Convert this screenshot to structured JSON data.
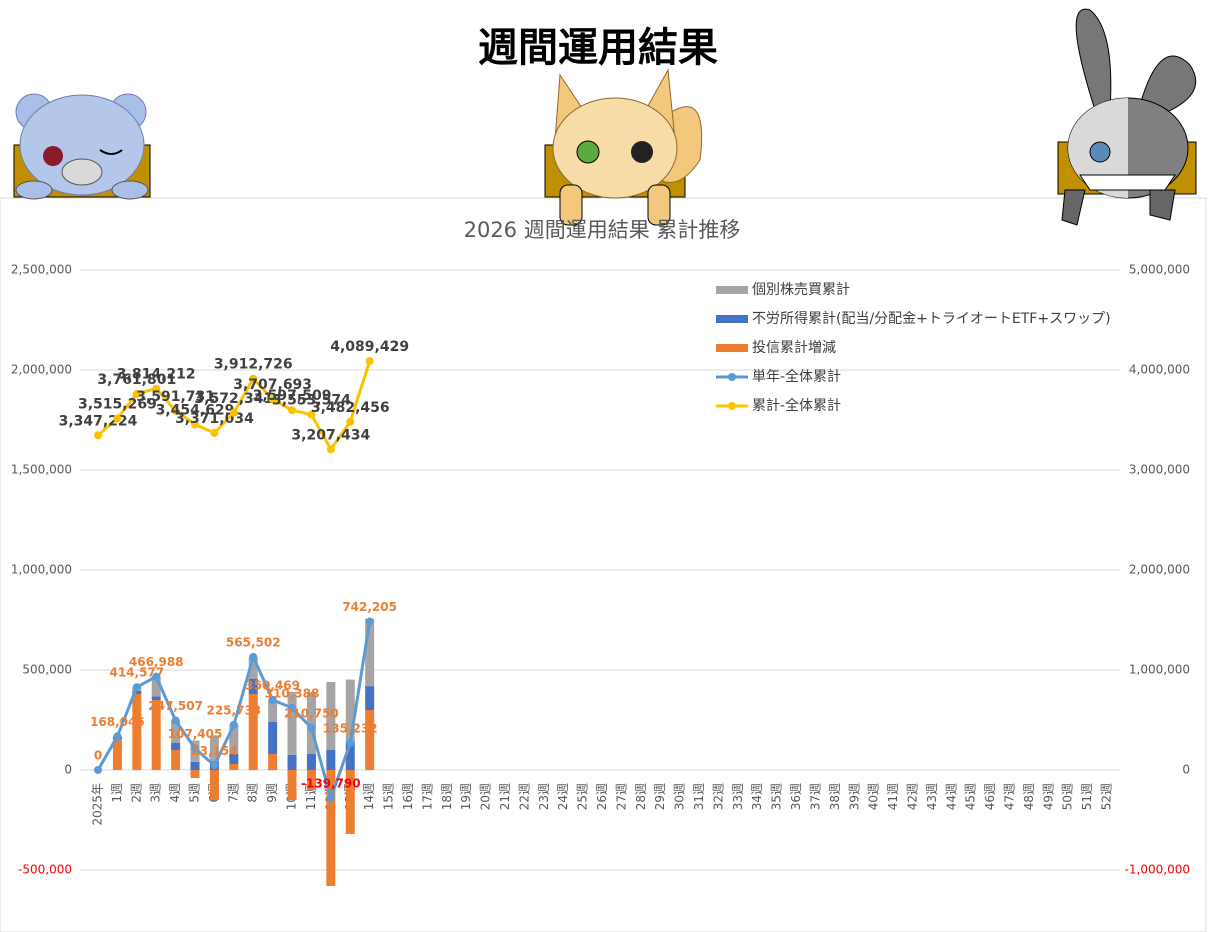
{
  "header": {
    "title": "週間運用結果"
  },
  "chart_data": {
    "type": "combo",
    "title": "2026 週間運用結果  累計推移",
    "categories": [
      "2025年",
      "1週",
      "2週",
      "3週",
      "4週",
      "5週",
      "6週",
      "7週",
      "8週",
      "9週",
      "10週",
      "11週",
      "12週",
      "13週",
      "14週",
      "15週",
      "16週",
      "17週",
      "18週",
      "19週",
      "20週",
      "21週",
      "22週",
      "23週",
      "24週",
      "25週",
      "26週",
      "27週",
      "28週",
      "29週",
      "30週",
      "31週",
      "32週",
      "33週",
      "34週",
      "35週",
      "36週",
      "37週",
      "38週",
      "39週",
      "40週",
      "41週",
      "42週",
      "43週",
      "44週",
      "45週",
      "46週",
      "47週",
      "48週",
      "49週",
      "50週",
      "51週",
      "52週"
    ],
    "ylim": [
      -500000,
      2500000
    ],
    "yticks": [
      {
        "value": -500000,
        "label": "-500,000"
      },
      {
        "value": 0,
        "label": "0"
      },
      {
        "value": 500000,
        "label": "500,000"
      },
      {
        "value": 1000000,
        "label": "1,000,000"
      },
      {
        "value": 1500000,
        "label": "1,500,000"
      },
      {
        "value": 2000000,
        "label": "2,000,000"
      },
      {
        "value": 2500000,
        "label": "2,500,000"
      }
    ],
    "y2lim": [
      -1000000,
      5000000
    ],
    "y2ticks": [
      {
        "value": -1000000,
        "label": "-1,000,000"
      },
      {
        "value": 0,
        "label": "0"
      },
      {
        "value": 1000000,
        "label": "1,000,000"
      },
      {
        "value": 2000000,
        "label": "2,000,000"
      },
      {
        "value": 3000000,
        "label": "3,000,000"
      },
      {
        "value": 4000000,
        "label": "4,000,000"
      },
      {
        "value": 5000000,
        "label": "5,000,000"
      }
    ],
    "grid": true,
    "legend": "upper-right",
    "series": [
      {
        "name": "個別株売買累計",
        "kind": "bar",
        "color": "#a5a5a5",
        "values": [
          0,
          0,
          18577,
          98988,
          112507,
          106405,
          131154,
          145733,
          110502,
          110469,
          314388,
          310000,
          340210,
          312000,
          337314,
          null,
          null,
          null,
          null,
          null,
          null,
          null,
          null,
          null,
          null,
          null,
          null,
          null,
          null,
          null,
          null,
          null,
          null,
          null,
          null,
          null,
          null,
          null,
          null,
          null,
          null,
          null,
          null,
          null,
          null,
          null,
          null,
          null,
          null,
          null,
          null,
          null,
          null
        ]
      },
      {
        "name": "不労所得累計(配当/分配金+トライオートETF+スワップ)",
        "kind": "bar",
        "color": "#4472c4",
        "values": [
          0,
          13603,
          16000,
          18490,
          35000,
          41000,
          42000,
          50000,
          75000,
          160000,
          76000,
          80000,
          100000,
          140000,
          119230,
          null,
          null,
          null,
          null,
          null,
          null,
          null,
          null,
          null,
          null,
          null,
          null,
          null,
          null,
          null,
          null,
          null,
          null,
          null,
          null,
          null,
          null,
          null,
          null,
          null,
          null,
          null,
          null,
          null,
          null,
          null,
          null,
          null,
          null,
          null,
          null,
          null,
          null
        ]
      },
      {
        "name": "投信累計増減",
        "kind": "bar",
        "color": "#ed7d31",
        "values": [
          0,
          154442,
          380000,
          350000,
          100000,
          -40000,
          -150000,
          30000,
          380000,
          80000,
          -150000,
          -100000,
          -580000,
          -320000,
          300000,
          null,
          null,
          null,
          null,
          null,
          null,
          null,
          null,
          null,
          null,
          null,
          null,
          null,
          null,
          null,
          null,
          null,
          null,
          null,
          null,
          null,
          null,
          null,
          null,
          null,
          null,
          null,
          null,
          null,
          null,
          null,
          null,
          null,
          null,
          null,
          null,
          null,
          null
        ]
      },
      {
        "name": "単年-全体累計",
        "kind": "line",
        "color": "#5b9bd5",
        "label_color": "#ed7d31",
        "values": [
          0,
          168045,
          414577,
          466988,
          247507,
          107405,
          23154,
          225733,
          565502,
          350469,
          310388,
          210750,
          -139790,
          135232,
          742205,
          null,
          null,
          null,
          null,
          null,
          null,
          null,
          null,
          null,
          null,
          null,
          null,
          null,
          null,
          null,
          null,
          null,
          null,
          null,
          null,
          null,
          null,
          null,
          null,
          null,
          null,
          null,
          null,
          null,
          null,
          null,
          null,
          null,
          null,
          null,
          null,
          null,
          null
        ],
        "value_labels": [
          "0",
          "168,045",
          "414,577",
          "466,988",
          "247,507",
          "107,405",
          "23,154",
          "225,733",
          "565,502",
          "350,469",
          "310,388",
          "210,750",
          "-139,790",
          "135,232",
          "742,205",
          null,
          null,
          null,
          null,
          null,
          null,
          null,
          null,
          null,
          null,
          null,
          null,
          null,
          null,
          null,
          null,
          null,
          null,
          null,
          null,
          null,
          null,
          null,
          null,
          null,
          null,
          null,
          null,
          null,
          null,
          null,
          null,
          null,
          null,
          null,
          null,
          null,
          null
        ]
      },
      {
        "name": "累計-全体累計",
        "kind": "line",
        "axis": "y2",
        "color": "#ffc000",
        "label_color": "#404040",
        "values": [
          3347224,
          3515269,
          3761801,
          3814212,
          3591731,
          3454629,
          3371034,
          3572341,
          3912726,
          3707693,
          3597509,
          3553574,
          3207434,
          3482456,
          4089429,
          null,
          null,
          null,
          null,
          null,
          null,
          null,
          null,
          null,
          null,
          null,
          null,
          null,
          null,
          null,
          null,
          null,
          null,
          null,
          null,
          null,
          null,
          null,
          null,
          null,
          null,
          null,
          null,
          null,
          null,
          null,
          null,
          null,
          null,
          null,
          null,
          null,
          null
        ],
        "value_labels": [
          "3,347,224",
          "3,515,269",
          "3,761,801",
          "3,814,212",
          "3,591,731",
          "3,454,629",
          "3,371,034",
          "3,572,341",
          "3,912,726",
          "3,707,693",
          "3,597,509",
          "3,553,574",
          "3,207,434",
          "3,482,456",
          "4,089,429",
          null,
          null,
          null,
          null,
          null,
          null,
          null,
          null,
          null,
          null,
          null,
          null,
          null,
          null,
          null,
          null,
          null,
          null,
          null,
          null,
          null,
          null,
          null,
          null,
          null,
          null,
          null,
          null,
          null,
          null,
          null,
          null,
          null,
          null,
          null,
          null,
          null,
          null
        ]
      }
    ]
  }
}
